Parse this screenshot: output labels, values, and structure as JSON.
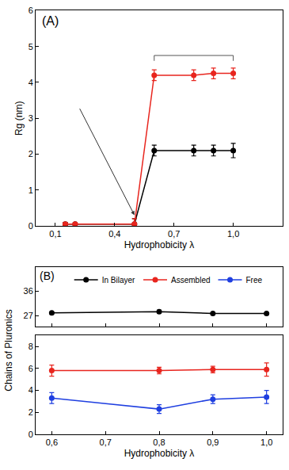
{
  "chart_data": [
    {
      "type": "line",
      "annotations": [
        "(A)"
      ],
      "x_label": "Hydrophobicity λ",
      "y_label": "Rg (nm)",
      "xlim": [
        0,
        1.25
      ],
      "xticks": [
        {
          "value": 0.1,
          "label": "0,1"
        },
        {
          "value": 0.4,
          "label": "0,4"
        },
        {
          "value": 0.7,
          "label": "0,7"
        },
        {
          "value": 1.0,
          "label": "1,0"
        }
      ],
      "ylim": [
        0,
        6
      ],
      "yticks": [
        0,
        1,
        2,
        3,
        4,
        5,
        6
      ],
      "grid": false,
      "marker": "circle",
      "line_style": "solid",
      "series": [
        {
          "color": "#000000",
          "x": [
            0.15,
            0.2,
            0.5,
            0.6,
            0.8,
            0.9,
            1.0
          ],
          "values": [
            0.05,
            0.05,
            0.05,
            2.1,
            2.1,
            2.1,
            2.1
          ],
          "error": [
            0.05,
            0.05,
            0.15,
            0.15,
            0.15,
            0.15,
            0.2
          ]
        },
        {
          "color": "#e8251e",
          "x": [
            0.15,
            0.2,
            0.5,
            0.6,
            0.8,
            0.9,
            1.0
          ],
          "values": [
            0.05,
            0.05,
            0.05,
            4.2,
            4.2,
            4.25,
            4.25
          ],
          "error": [
            0.05,
            0.05,
            0.15,
            0.15,
            0.15,
            0.15,
            0.15
          ]
        }
      ]
    },
    {
      "type": "line",
      "annotations": [
        "(B)"
      ],
      "x_label": "Hydrophobicity λ",
      "y_label": "Chains of Pluronics",
      "xlim": [
        0.57,
        1.03
      ],
      "xticks": [
        {
          "value": 0.6,
          "label": "0,6"
        },
        {
          "value": 0.7,
          "label": "0,7"
        },
        {
          "value": 0.8,
          "label": "0,8"
        },
        {
          "value": 0.9,
          "label": "0,9"
        },
        {
          "value": 1.0,
          "label": "1,0"
        }
      ],
      "ylim": [
        0,
        9
      ],
      "yticks": [
        0,
        2,
        4,
        6,
        8
      ],
      "y2lim": [
        23,
        45
      ],
      "y2ticks": [
        27,
        36
      ],
      "grid": false,
      "legend": "top",
      "marker": "circle",
      "line_style": "solid",
      "series": [
        {
          "name": "In Bilayer",
          "color": "#000000",
          "axis": "y2",
          "x": [
            0.6,
            0.8,
            0.9,
            1.0
          ],
          "values": [
            28,
            28.5,
            27.8,
            27.8
          ],
          "error": [
            0.3,
            0.5,
            0.3,
            0.3
          ]
        },
        {
          "name": "Assembled",
          "color": "#e8251e",
          "x": [
            0.6,
            0.8,
            0.9,
            1.0
          ],
          "values": [
            5.8,
            5.8,
            5.9,
            5.9
          ],
          "error": [
            0.5,
            0.3,
            0.3,
            0.6
          ]
        },
        {
          "name": "Free",
          "color": "#1f3fe0",
          "x": [
            0.6,
            0.8,
            0.9,
            1.0
          ],
          "values": [
            3.3,
            2.3,
            3.2,
            3.4
          ],
          "error": [
            0.5,
            0.4,
            0.4,
            0.6
          ]
        }
      ]
    }
  ]
}
